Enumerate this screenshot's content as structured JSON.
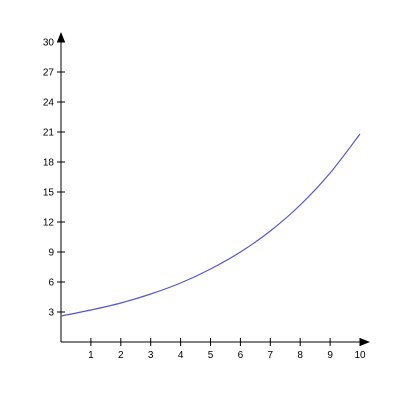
{
  "chart_data": {
    "type": "line",
    "title": "",
    "xlabel": "",
    "ylabel": "",
    "xlim": [
      0,
      10
    ],
    "ylim": [
      0,
      30
    ],
    "x_ticks": [
      1,
      2,
      3,
      4,
      5,
      6,
      7,
      8,
      9,
      10
    ],
    "y_ticks": [
      3,
      6,
      9,
      12,
      15,
      18,
      21,
      24,
      27,
      30
    ],
    "grid": false,
    "legend": "none",
    "series": [
      {
        "color": "#5555cc",
        "x": [
          0,
          1,
          2,
          3,
          4,
          5,
          6,
          7,
          8,
          9,
          10
        ],
        "y": [
          2.6,
          3.2,
          3.9,
          4.8,
          5.9,
          7.3,
          9.0,
          11.1,
          13.7,
          16.9,
          20.8
        ]
      }
    ]
  },
  "style": {
    "axis_color": "#000000",
    "label_color": "#000000"
  }
}
